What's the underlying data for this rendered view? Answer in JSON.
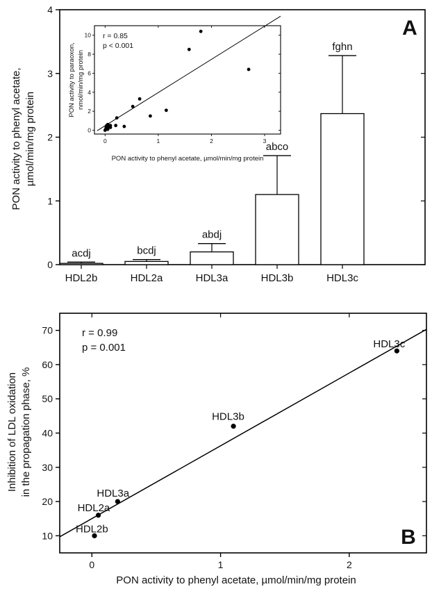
{
  "chart_data": [
    {
      "type": "bar",
      "panel_label": "A",
      "categories": [
        "HDL2b",
        "HDL2a",
        "HDL3a",
        "HDL3b",
        "HDL3c"
      ],
      "values": [
        0.02,
        0.05,
        0.2,
        1.1,
        2.37
      ],
      "error_upper": [
        0.04,
        0.08,
        0.33,
        1.71,
        3.28
      ],
      "significance_labels": [
        "acdj",
        "bcdj",
        "abdj",
        "abco",
        "fghn"
      ],
      "ylabel": [
        "PON activity to phenyl acetate,",
        "µmol/min/mg protein"
      ],
      "ylim": [
        0,
        4
      ],
      "yticks": [
        "0",
        "1",
        "2",
        "3",
        "4"
      ],
      "inset": {
        "type": "scatter",
        "stats": [
          "r = 0.85",
          "p < 0.001"
        ],
        "xlabel": "PON activity to phenyl acetate, µmol/min/mg protein",
        "ylabel": [
          "PON activity to paraoxon,",
          "nmol/min/mg protein"
        ],
        "xlim": [
          -0.2,
          3.3
        ],
        "ylim": [
          -0.4,
          11
        ],
        "xticks": [
          "0",
          "1",
          "2",
          "3"
        ],
        "yticks": [
          "0",
          "2",
          "4",
          "6",
          "8",
          "10"
        ],
        "x": [
          0.0,
          0.01,
          0.02,
          0.03,
          0.03,
          0.05,
          0.05,
          0.07,
          0.1,
          0.1,
          0.2,
          0.22,
          0.36,
          0.52,
          0.65,
          0.85,
          1.15,
          1.58,
          1.8,
          2.7
        ],
        "y": [
          0.0,
          0.1,
          0.3,
          0.2,
          0.5,
          0.1,
          0.6,
          0.4,
          0.3,
          0.5,
          0.5,
          1.3,
          0.4,
          2.5,
          3.3,
          1.5,
          2.1,
          8.5,
          10.4,
          6.4
        ],
        "fit": [
          [
            -0.15,
            -0.05
          ],
          [
            3.3,
            12.0
          ]
        ]
      }
    },
    {
      "type": "scatter",
      "panel_label": "B",
      "stats": [
        "r = 0.99",
        "p = 0.001"
      ],
      "xlabel": "PON activity to phenyl acetate, µmol/min/mg protein",
      "ylabel": [
        "Inhibition of LDL oxidation",
        "in the propagation phase, %"
      ],
      "xlim": [
        -0.25,
        2.6
      ],
      "ylim": [
        5,
        75
      ],
      "xticks": [
        "0",
        "1",
        "2"
      ],
      "yticks": [
        "10",
        "20",
        "30",
        "40",
        "50",
        "60",
        "70"
      ],
      "points": [
        {
          "label": "HDL2b",
          "x": 0.02,
          "y": 10
        },
        {
          "label": "HDL2a",
          "x": 0.05,
          "y": 16
        },
        {
          "label": "HDL3a",
          "x": 0.2,
          "y": 20
        },
        {
          "label": "HDL3b",
          "x": 1.1,
          "y": 42
        },
        {
          "label": "HDL3c",
          "x": 2.37,
          "y": 64
        }
      ],
      "fit": [
        [
          -0.25,
          9.7
        ],
        [
          2.6,
          70.3
        ]
      ]
    }
  ]
}
